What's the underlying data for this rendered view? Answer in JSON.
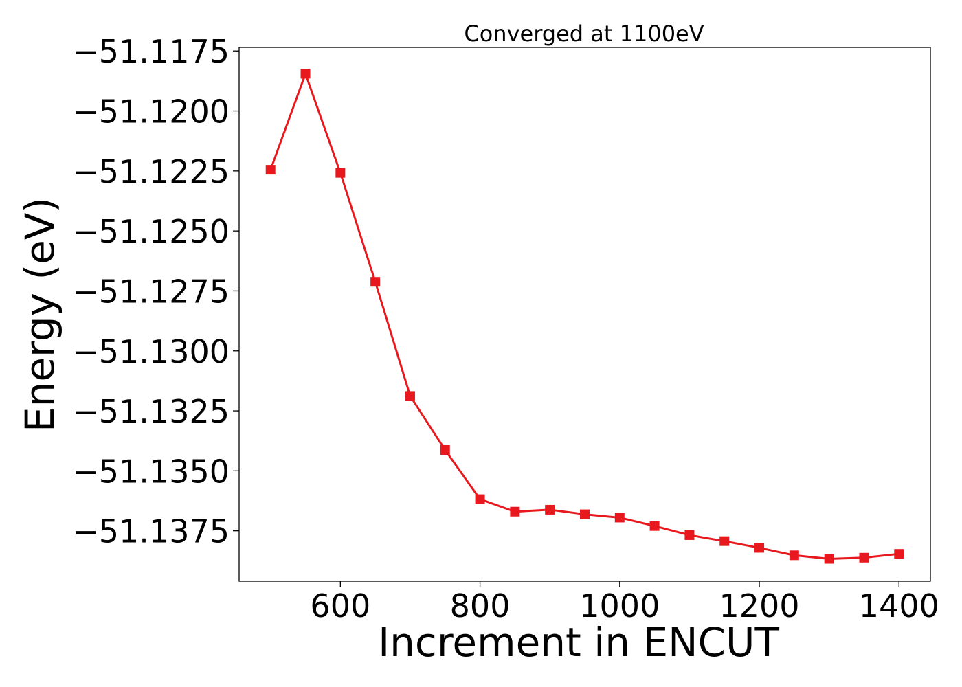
{
  "chart_data": {
    "type": "line",
    "title": "Converged at 1100eV",
    "xlabel": "Increment in ENCUT",
    "ylabel": "Energy (eV)",
    "x": [
      500,
      550,
      600,
      650,
      700,
      750,
      800,
      850,
      900,
      950,
      1000,
      1050,
      1100,
      1150,
      1200,
      1250,
      1300,
      1350,
      1400
    ],
    "series": [
      {
        "values": [
          -51.12245,
          -51.11845,
          -51.12258,
          -51.12712,
          -51.13188,
          -51.13413,
          -51.13618,
          -51.1367,
          -51.13662,
          -51.13681,
          -51.13695,
          -51.1373,
          -51.13768,
          -51.13793,
          -51.13821,
          -51.13852,
          -51.13867,
          -51.13862,
          -51.13846
        ],
        "color": "#e8191e",
        "marker": "square"
      }
    ],
    "xticks": [
      600,
      800,
      1000,
      1200,
      1400
    ],
    "xtick_labels": [
      "600",
      "800",
      "1000",
      "1200",
      "1400"
    ],
    "yticks": [
      -51.1175,
      -51.12,
      -51.1225,
      -51.125,
      -51.1275,
      -51.13,
      -51.1325,
      -51.135,
      -51.1375
    ],
    "ytick_labels": [
      "−51.1175",
      "−51.1200",
      "−51.1225",
      "−51.1250",
      "−51.1275",
      "−51.1300",
      "−51.1325",
      "−51.1350",
      "−51.1375"
    ],
    "xlim": [
      455,
      1445
    ],
    "ylim": [
      -51.1396,
      -51.11735
    ],
    "grid": false,
    "legend": "none"
  }
}
